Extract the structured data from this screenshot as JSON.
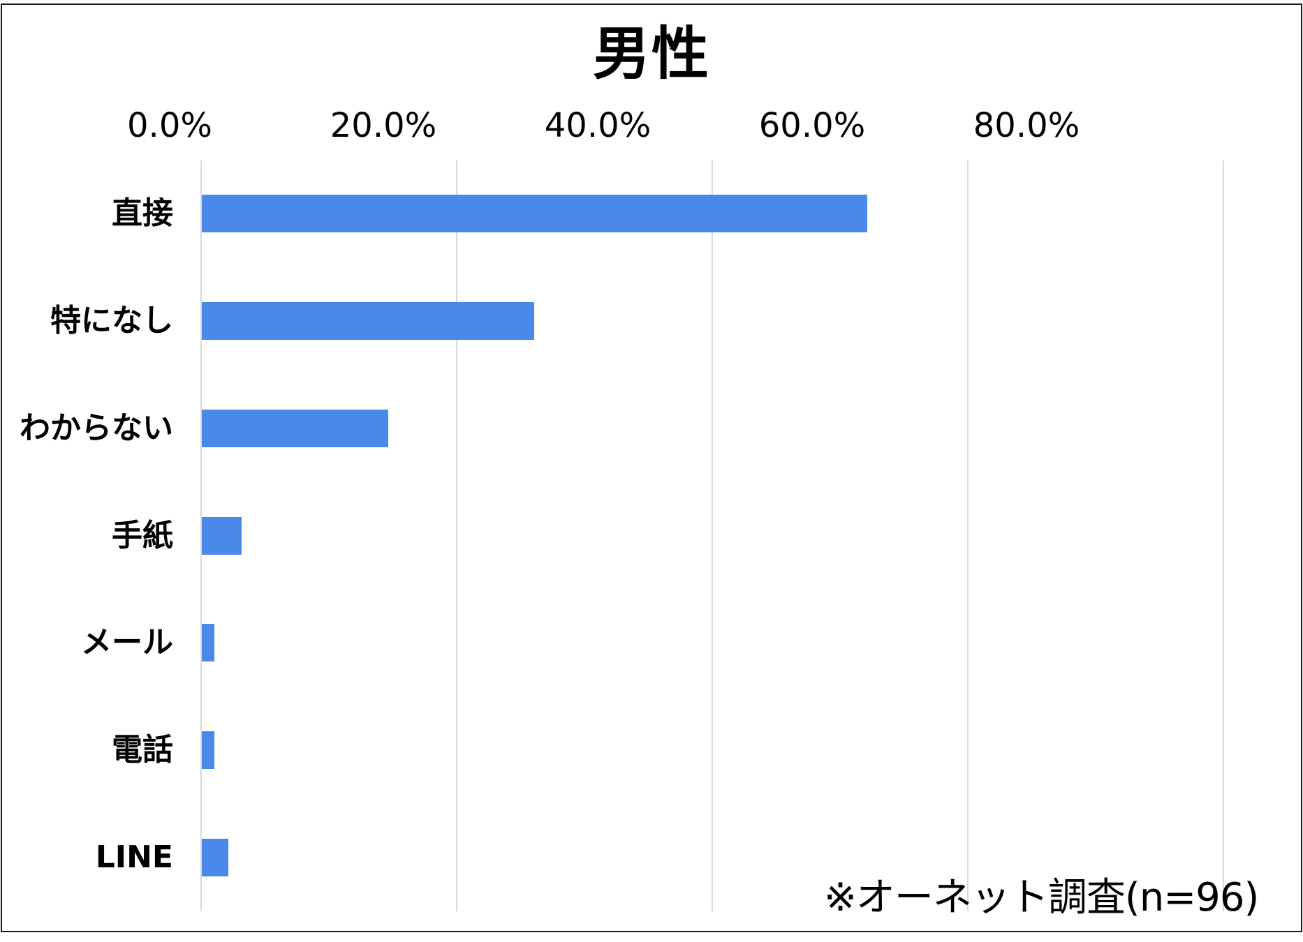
{
  "chart_data": {
    "type": "bar",
    "orientation": "horizontal",
    "title": "男性",
    "xlabel": "",
    "ylabel": "",
    "xlim": [
      0,
      80
    ],
    "x_axis_position": "top",
    "grid": true,
    "tick_labels": [
      "0.0%",
      "20.0%",
      "40.0%",
      "60.0%",
      "80.0%"
    ],
    "tick_values": [
      0,
      20,
      40,
      60,
      80
    ],
    "categories": [
      "直接",
      "特になし",
      "わからない",
      "手紙",
      "メール",
      "電話",
      "LINE"
    ],
    "values": [
      52.1,
      26.0,
      14.6,
      3.1,
      1.0,
      1.0,
      2.1
    ],
    "unit": "%",
    "bar_color": "#4a89ea",
    "legend": null,
    "annotation": "※オーネット調査(n=96)"
  },
  "colors": {
    "bar": "#4a89ea",
    "grid": "#d9d9d9",
    "border": "#1c1c1c",
    "text": "#000000"
  }
}
